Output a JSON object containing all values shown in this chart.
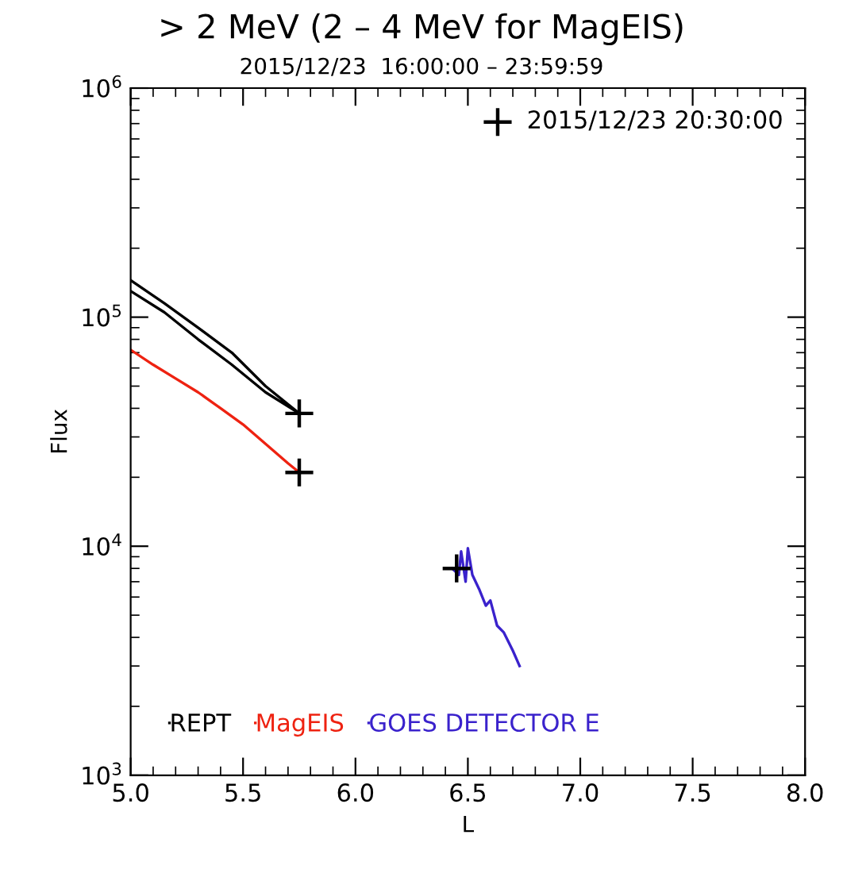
{
  "chart_data": {
    "type": "line",
    "title": "> 2 MeV (2 – 4 MeV for MagEIS)",
    "subtitle": "2015/12/23  16:00:00 – 23:59:59",
    "xlabel": "L",
    "ylabel": "Flux",
    "log": "y",
    "xlim": [
      5.0,
      8.0
    ],
    "xticks": [
      {
        "value": 5.0,
        "label": "5.0"
      },
      {
        "value": 5.5,
        "label": "5.5"
      },
      {
        "value": 6.0,
        "label": "6.0"
      },
      {
        "value": 6.5,
        "label": "6.5"
      },
      {
        "value": 7.0,
        "label": "7.0"
      },
      {
        "value": 7.5,
        "label": "7.5"
      },
      {
        "value": 8.0,
        "label": "8.0"
      }
    ],
    "ylim": [
      1000,
      1000000
    ],
    "yticks": [
      {
        "value": 1000,
        "label": "10$^{3}$"
      },
      {
        "value": 10000,
        "label": "10$^{4}$"
      },
      {
        "value": 100000,
        "label": "10$^{5}$"
      },
      {
        "value": 1000000,
        "label": "10$^{6}$"
      }
    ],
    "grid": false,
    "legend": "top right",
    "series": [
      {
        "name": "REPT",
        "color": "#000000",
        "x": [
          5.0,
          5.15,
          5.3,
          5.45,
          5.6,
          5.75,
          5.6,
          5.45,
          5.3,
          5.15,
          5.0
        ],
        "values": [
          145000,
          115000,
          90000,
          70000,
          50000,
          38000,
          47000,
          62000,
          80000,
          105000,
          130000
        ]
      },
      {
        "name": "MagEIS",
        "color": "#ee2211",
        "x": [
          5.0,
          5.1,
          5.2,
          5.3,
          5.4,
          5.5,
          5.6,
          5.7,
          5.75
        ],
        "values": [
          72000,
          62000,
          54000,
          47000,
          40000,
          34000,
          28000,
          23000,
          21000
        ]
      },
      {
        "name": "GOES DETECTOR E",
        "color": "#3a22cc",
        "x": [
          6.43,
          6.46,
          6.47,
          6.49,
          6.5,
          6.52,
          6.55,
          6.58,
          6.6,
          6.63,
          6.66,
          6.7,
          6.73
        ],
        "values": [
          8000,
          7500,
          9500,
          7000,
          9800,
          7500,
          6500,
          5500,
          5800,
          4500,
          4200,
          3500,
          3000
        ]
      },
      {
        "name": "2015/12/23 20:30:00",
        "type": "scatter",
        "marker": "cross",
        "color": "#000000",
        "x": [
          5.75,
          5.75,
          6.45
        ],
        "values": [
          38000,
          21000,
          8000
        ]
      }
    ]
  }
}
